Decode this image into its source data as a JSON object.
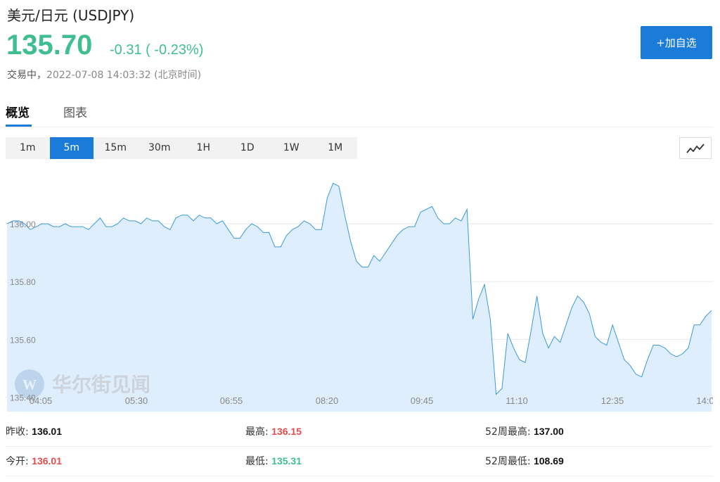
{
  "header": {
    "title": "美元/日元  (USDJPY)",
    "price": "135.70",
    "change": "-0.31 ( -0.23%)",
    "status_label": "交易中，",
    "timestamp": "2022-07-08 14:03:32 (北京时间)",
    "add_button_label": "+加自选",
    "price_color": "#3fbf8f",
    "accent_color": "#1a7bd8"
  },
  "tabs": [
    {
      "label": "概览",
      "active": true
    },
    {
      "label": "图表",
      "active": false
    }
  ],
  "periods": [
    {
      "label": "1m",
      "active": false
    },
    {
      "label": "5m",
      "active": true
    },
    {
      "label": "15m",
      "active": false
    },
    {
      "label": "30m",
      "active": false
    },
    {
      "label": "1H",
      "active": false
    },
    {
      "label": "1D",
      "active": false
    },
    {
      "label": "1W",
      "active": false
    },
    {
      "label": "1M",
      "active": false
    }
  ],
  "chart_toggle_icon": "line-chart-icon",
  "watermark": {
    "text": "华尔街见闻",
    "icon": "wallstreetcn-logo-icon"
  },
  "chart_data": {
    "type": "area",
    "title": "",
    "xlabel": "",
    "ylabel": "",
    "x_ticks": [
      "04:05",
      "05:30",
      "06:55",
      "08:20",
      "09:45",
      "11:10",
      "12:35",
      "14:0"
    ],
    "y_ticks": [
      "136.00",
      "135.80",
      "135.60",
      "135.40"
    ],
    "ylim": [
      135.35,
      136.19
    ],
    "grid": true,
    "line_color": "#3a9ad9",
    "fill_color": "#deeefc",
    "series": [
      {
        "values": [
          136.0,
          136.01,
          136.01,
          136.0,
          135.98,
          135.99,
          136.0,
          136.0,
          135.99,
          135.99,
          136.0,
          135.99,
          135.99,
          135.99,
          135.98,
          136.0,
          136.02,
          135.99,
          135.99,
          136.0,
          136.02,
          136.01,
          136.01,
          136.0,
          136.02,
          136.01,
          136.01,
          135.99,
          135.98,
          136.02,
          136.03,
          136.03,
          136.01,
          136.03,
          136.02,
          136.02,
          136.0,
          136.01,
          135.98,
          135.95,
          135.95,
          135.98,
          136.0,
          135.99,
          135.97,
          135.97,
          135.92,
          135.92,
          135.96,
          135.98,
          135.99,
          136.01,
          136.0,
          135.98,
          135.98,
          136.09,
          136.14,
          136.13,
          136.03,
          135.94,
          135.87,
          135.85,
          135.85,
          135.89,
          135.87,
          135.9,
          135.93,
          135.96,
          135.98,
          135.99,
          135.99,
          136.04,
          136.05,
          136.06,
          136.02,
          136.0,
          136.0,
          136.02,
          136.01,
          136.05,
          135.67,
          135.74,
          135.79,
          135.67,
          135.41,
          135.43,
          135.62,
          135.57,
          135.53,
          135.52,
          135.63,
          135.75,
          135.62,
          135.57,
          135.61,
          135.59,
          135.65,
          135.71,
          135.75,
          135.73,
          135.69,
          135.61,
          135.59,
          135.58,
          135.65,
          135.59,
          135.53,
          135.51,
          135.48,
          135.47,
          135.53,
          135.58,
          135.58,
          135.57,
          135.55,
          135.54,
          135.55,
          135.57,
          135.65,
          135.65,
          135.68,
          135.7
        ]
      }
    ]
  },
  "stats": {
    "prev_close_label": "昨收:",
    "prev_close": "136.01",
    "high_label": "最高:",
    "high": "136.15",
    "w52_high_label": "52周最高:",
    "w52_high": "137.00",
    "open_label": "今开:",
    "open": "136.01",
    "low_label": "最低:",
    "low": "135.31",
    "w52_low_label": "52周最低:",
    "w52_low": "108.69",
    "up_color": "#e74c4c",
    "down_color": "#3fbf8f"
  }
}
